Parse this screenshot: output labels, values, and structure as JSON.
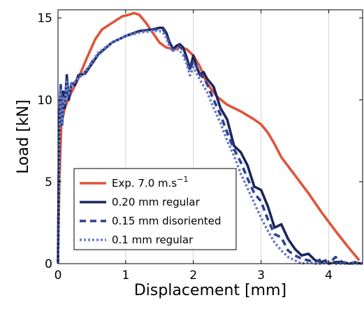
{
  "chart_data": {
    "type": "line",
    "title": "",
    "xlabel": "Displacement [mm]",
    "ylabel": "Load [kN]",
    "xlim": [
      0,
      4.5
    ],
    "ylim": [
      0,
      15.5
    ],
    "xticks": [
      "0",
      "1",
      "2",
      "3",
      "4"
    ],
    "yticks": [
      "0",
      "5",
      "10",
      "15"
    ],
    "grid": "vertical",
    "legend_position": "bottom-left",
    "series": [
      {
        "name": "Exp. 7.0 m.s",
        "name_superscript": "−1",
        "color": "#e0543a",
        "dash": "solid",
        "x": [
          0.0,
          0.02,
          0.05,
          0.1,
          0.18,
          0.3,
          0.42,
          0.55,
          0.65,
          0.8,
          0.95,
          1.05,
          1.12,
          1.2,
          1.3,
          1.4,
          1.5,
          1.6,
          1.7,
          1.8,
          1.9,
          2.0,
          2.1,
          2.2,
          2.35,
          2.5,
          2.7,
          2.9,
          3.0,
          3.1,
          3.2,
          3.3,
          3.5,
          3.7,
          3.9,
          4.1,
          4.25,
          4.35,
          4.45
        ],
        "values": [
          0.0,
          5.0,
          8.5,
          9.5,
          10.3,
          11.3,
          12.5,
          13.7,
          14.3,
          14.7,
          15.1,
          15.2,
          15.3,
          15.2,
          14.7,
          14.1,
          13.5,
          13.2,
          13.1,
          13.2,
          13.1,
          12.7,
          12.0,
          11.0,
          10.2,
          9.7,
          9.3,
          8.8,
          8.5,
          8.0,
          7.3,
          6.5,
          5.4,
          4.3,
          3.1,
          2.0,
          1.2,
          0.7,
          0.2
        ]
      },
      {
        "name": "0.20 mm regular",
        "color": "#1b2659",
        "dash": "solid",
        "x": [
          0.0,
          0.02,
          0.04,
          0.06,
          0.08,
          0.1,
          0.13,
          0.16,
          0.2,
          0.25,
          0.3,
          0.4,
          0.5,
          0.6,
          0.8,
          1.0,
          1.2,
          1.4,
          1.5,
          1.55,
          1.6,
          1.65,
          1.7,
          1.75,
          1.8,
          1.85,
          1.9,
          1.95,
          2.0,
          2.05,
          2.1,
          2.15,
          2.2,
          2.3,
          2.4,
          2.5,
          2.6,
          2.7,
          2.8,
          2.9,
          3.0,
          3.1,
          3.2,
          3.3,
          3.4,
          3.5,
          3.6,
          3.7,
          3.8,
          3.9,
          3.95,
          4.0,
          4.1,
          4.2,
          4.3,
          4.4,
          4.5
        ],
        "values": [
          0.0,
          8.8,
          10.8,
          8.5,
          10.5,
          9.5,
          11.5,
          10.0,
          11.0,
          10.9,
          11.5,
          11.6,
          12.2,
          12.8,
          13.5,
          13.9,
          14.2,
          14.3,
          14.4,
          14.4,
          14.1,
          13.5,
          13.1,
          13.3,
          13.4,
          13.2,
          12.6,
          11.9,
          12.7,
          12.0,
          11.5,
          11.7,
          11.3,
          10.8,
          9.5,
          8.8,
          7.2,
          6.8,
          6.0,
          4.7,
          4.5,
          3.5,
          2.2,
          2.4,
          1.5,
          0.9,
          0.5,
          0.6,
          0.2,
          0.1,
          0.2,
          0.0,
          0.1,
          0.1,
          0.0,
          0.05,
          0.0
        ]
      },
      {
        "name": "0.15 mm disoriented",
        "color": "#2a3f95",
        "dash": "dashed",
        "x": [
          0.0,
          0.02,
          0.04,
          0.06,
          0.08,
          0.1,
          0.13,
          0.16,
          0.2,
          0.25,
          0.3,
          0.4,
          0.5,
          0.6,
          0.8,
          1.0,
          1.2,
          1.4,
          1.5,
          1.55,
          1.6,
          1.65,
          1.7,
          1.75,
          1.8,
          1.85,
          1.9,
          1.95,
          2.0,
          2.1,
          2.2,
          2.3,
          2.4,
          2.5,
          2.6,
          2.7,
          2.8,
          2.9,
          3.0,
          3.1,
          3.2,
          3.3,
          3.4,
          3.5,
          3.6,
          3.7,
          3.8,
          3.9,
          4.0,
          4.1,
          4.2,
          4.3,
          4.4,
          4.5
        ],
        "values": [
          0.0,
          8.5,
          10.9,
          8.4,
          10.3,
          9.7,
          11.3,
          10.2,
          11.0,
          11.0,
          11.4,
          11.7,
          12.3,
          12.8,
          13.5,
          13.9,
          14.2,
          14.3,
          14.3,
          14.3,
          14.0,
          13.4,
          13.0,
          13.2,
          13.3,
          13.0,
          12.4,
          11.8,
          12.4,
          11.6,
          11.0,
          10.0,
          9.1,
          8.0,
          7.0,
          6.2,
          5.2,
          4.3,
          3.8,
          2.7,
          1.8,
          1.6,
          0.8,
          0.5,
          0.3,
          0.2,
          0.1,
          0.3,
          0.0,
          0.4,
          0.1,
          0.0,
          0.1,
          0.0
        ]
      },
      {
        "name": "0.1 mm regular",
        "color": "#6b7bc6",
        "dash": "dotted",
        "x": [
          0.0,
          0.02,
          0.04,
          0.06,
          0.08,
          0.1,
          0.13,
          0.16,
          0.2,
          0.25,
          0.3,
          0.4,
          0.5,
          0.6,
          0.8,
          1.0,
          1.2,
          1.4,
          1.5,
          1.55,
          1.6,
          1.65,
          1.7,
          1.75,
          1.8,
          1.85,
          1.9,
          1.95,
          2.0,
          2.1,
          2.2,
          2.3,
          2.4,
          2.5,
          2.6,
          2.7,
          2.8,
          2.9,
          3.0,
          3.1,
          3.2,
          3.3,
          3.4,
          3.5,
          3.6,
          3.7,
          3.8,
          3.9,
          4.0,
          4.1,
          4.2,
          4.3,
          4.4,
          4.5
        ],
        "values": [
          0.0,
          8.3,
          10.6,
          8.6,
          10.1,
          9.8,
          11.1,
          10.4,
          10.9,
          11.1,
          11.3,
          11.7,
          12.3,
          12.9,
          13.5,
          13.9,
          14.1,
          14.2,
          14.2,
          14.1,
          13.8,
          13.2,
          13.0,
          13.1,
          13.0,
          12.7,
          12.2,
          11.5,
          12.0,
          11.2,
          10.5,
          9.5,
          8.6,
          7.5,
          6.6,
          5.5,
          4.6,
          3.7,
          2.8,
          2.0,
          1.3,
          0.8,
          0.4,
          0.2,
          0.0,
          0.1,
          0.0,
          0.0,
          0.1,
          0.0,
          0.0,
          0.0,
          0.0,
          0.0
        ]
      }
    ]
  }
}
